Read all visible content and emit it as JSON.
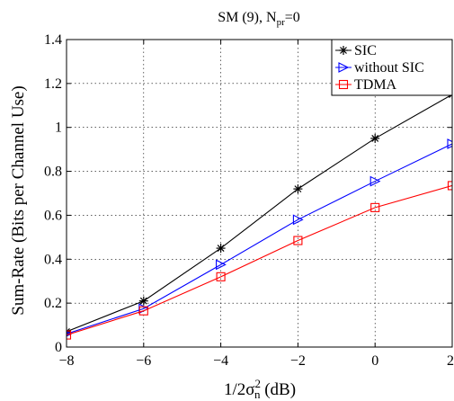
{
  "chart_data": {
    "type": "line",
    "title": "SM (9), N",
    "title_sub": "pr",
    "title_tail": "=0",
    "ylabel": "Sum-Rate (Bits per Channel Use)",
    "xlabel_prefix": "1/2σ",
    "xlabel_sup": "2",
    "xlabel_sub": "n",
    "xlabel_suffix": " (dB)",
    "xlim": [
      -8,
      2
    ],
    "ylim": [
      0,
      1.4
    ],
    "xticks": [
      -8,
      -6,
      -4,
      -2,
      0,
      2
    ],
    "xtick_labels": [
      "−8",
      "−6",
      "−4",
      "−2",
      "0",
      "2"
    ],
    "yticks": [
      0,
      0.2,
      0.4,
      0.6,
      0.8,
      1,
      1.2,
      1.4
    ],
    "ytick_labels": [
      "0",
      "0.2",
      "0.4",
      "0.6",
      "0.8",
      "1",
      "1.2",
      "1.4"
    ],
    "grid": true,
    "legend_position": "top-right",
    "x": [
      -8,
      -6,
      -4,
      -2,
      0,
      2
    ],
    "series": [
      {
        "name": "SIC",
        "marker": "star",
        "color": "#000000",
        "values": [
          0.07,
          0.21,
          0.45,
          0.72,
          0.95,
          1.15
        ]
      },
      {
        "name": "without SIC",
        "marker": "triangle-right",
        "color": "#0000ff",
        "values": [
          0.06,
          0.175,
          0.375,
          0.58,
          0.755,
          0.925
        ]
      },
      {
        "name": "TDMA",
        "marker": "square",
        "color": "#ff0000",
        "values": [
          0.055,
          0.165,
          0.32,
          0.485,
          0.635,
          0.735
        ]
      }
    ]
  }
}
